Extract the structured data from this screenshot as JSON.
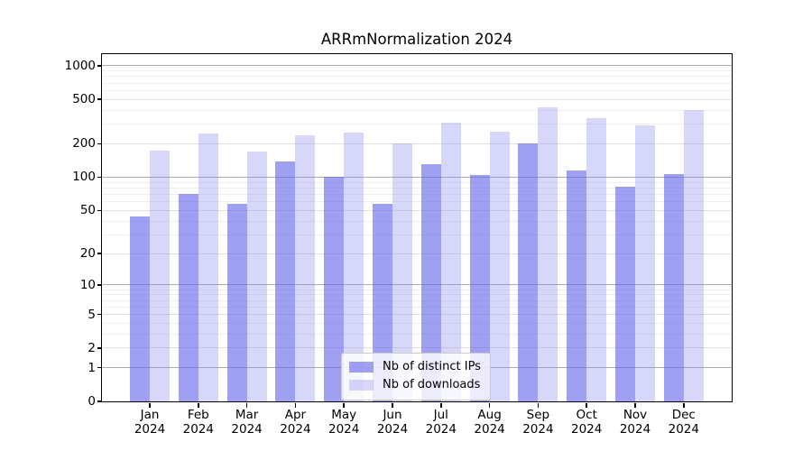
{
  "title": "ARRmNormalization 2024",
  "legend": {
    "position": "lower center",
    "items": [
      {
        "label": "Nb of distinct IPs",
        "series": "ips"
      },
      {
        "label": "Nb of downloads",
        "series": "downloads"
      }
    ]
  },
  "colors": {
    "ips_fill": "rgba(102,102,235,0.62)",
    "downloads_fill": "rgba(141,141,240,0.35)",
    "grid_major": "#ababab",
    "grid_mid": "#e0e0e0",
    "grid_minor": "#eeeeee",
    "spine": "#000000",
    "text": "#000000"
  },
  "chart_data": {
    "type": "bar",
    "title": "ARRmNormalization 2024",
    "categories": [
      "Jan 2024",
      "Feb 2024",
      "Mar 2024",
      "Apr 2024",
      "May 2024",
      "Jun 2024",
      "Jul 2024",
      "Aug 2024",
      "Sep 2024",
      "Oct 2024",
      "Nov 2024",
      "Dec 2024"
    ],
    "series": [
      {
        "name": "Nb of distinct IPs",
        "key": "ips",
        "values": [
          44,
          71,
          57,
          140,
          100,
          57,
          131,
          104,
          200,
          114,
          82,
          107
        ]
      },
      {
        "name": "Nb of downloads",
        "key": "downloads",
        "values": [
          172,
          248,
          170,
          238,
          252,
          200,
          310,
          256,
          423,
          342,
          291,
          405
        ]
      }
    ],
    "xlabel": "",
    "ylabel": "",
    "yticks": [
      0,
      1,
      2,
      5,
      10,
      20,
      50,
      100,
      200,
      500,
      1000
    ],
    "major_gridline_ticks": [
      1,
      10,
      100,
      1000
    ],
    "minor_gridlines": [
      3,
      4,
      6,
      7,
      8,
      9,
      30,
      40,
      60,
      70,
      80,
      90,
      300,
      400,
      600,
      700,
      800,
      900
    ],
    "ylim": [
      0,
      1280
    ],
    "scale": "log1p",
    "grid": true,
    "legend_position": "lower center"
  }
}
